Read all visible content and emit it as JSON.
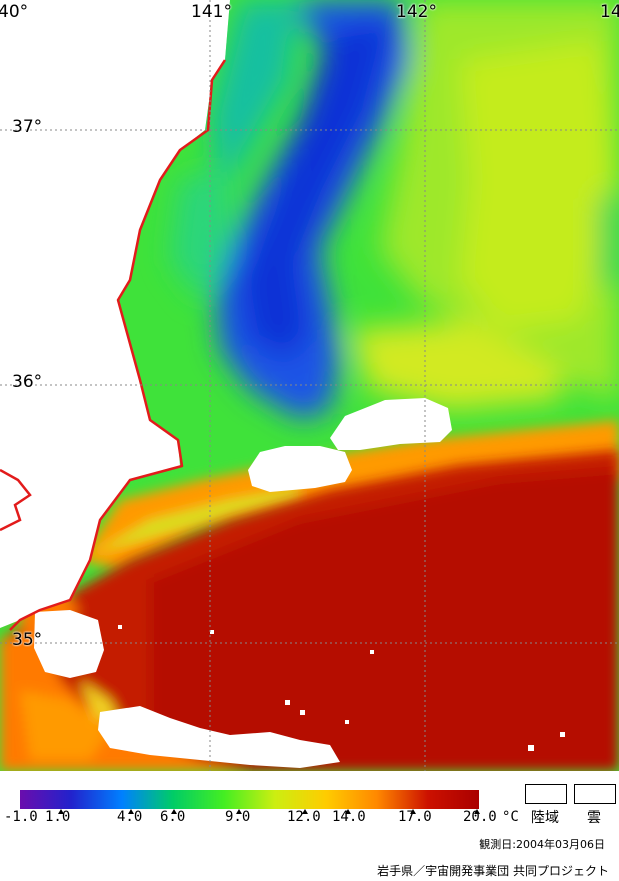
{
  "map": {
    "lat_labels": [
      "37°",
      "36°",
      "35°"
    ],
    "lon_labels": [
      "40°",
      "141°",
      "142°",
      "14"
    ]
  },
  "legend": {
    "unit": "°C",
    "ticks": [
      "-1.0",
      "1.0",
      "4.0",
      "6.0",
      "9.0",
      "12.0",
      "14.0",
      "17.0",
      "20.0"
    ],
    "colors": [
      "#6a0dad",
      "#2222cc",
      "#0080ff",
      "#00cc66",
      "#44ee22",
      "#ccee11",
      "#ffcc00",
      "#ff8800",
      "#cc1100",
      "#aa0000"
    ],
    "land_label": "陸域",
    "cloud_label": "雲"
  },
  "observation": "観測日:2004年03月06日",
  "credit": "岩手県／宇宙開発事業団  共同プロジェクト"
}
